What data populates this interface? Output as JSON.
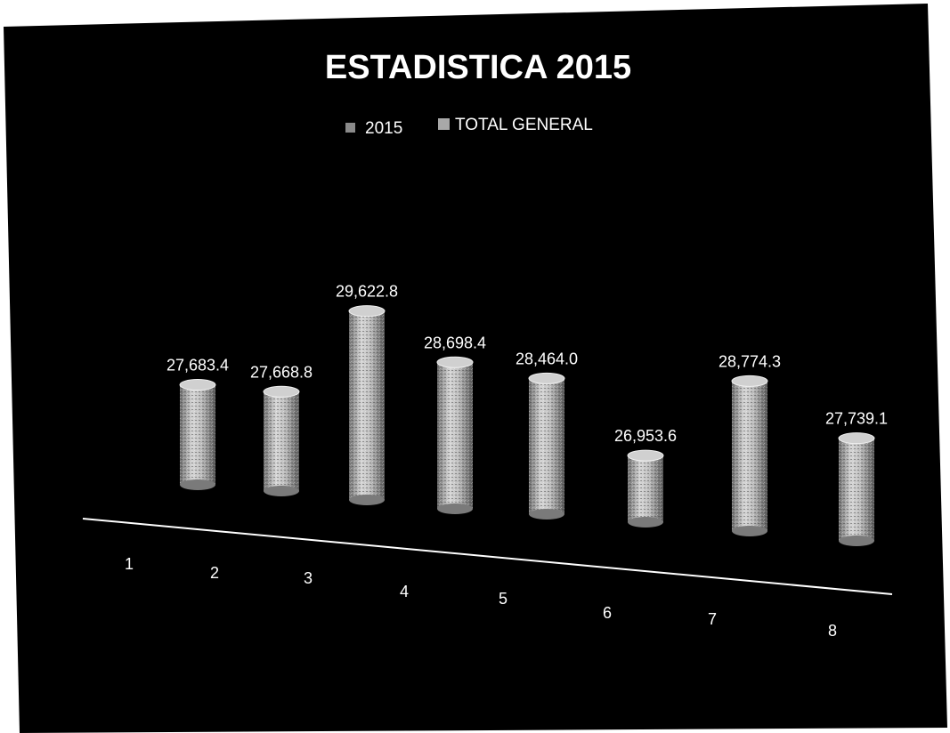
{
  "chart_data": {
    "type": "bar",
    "title": "ESTADISTICA 2015",
    "legend": {
      "position": "top",
      "entries": [
        "2015",
        "TOTAL GENERAL"
      ]
    },
    "categories": [
      "1",
      "2",
      "3",
      "4",
      "5",
      "6",
      "7",
      "8"
    ],
    "series": [
      {
        "name": "2015",
        "values": [
          null,
          null,
          null,
          null,
          null,
          null,
          null,
          null
        ]
      },
      {
        "name": "TOTAL GENERAL",
        "values": [
          27683.4,
          27668.8,
          29622.8,
          28698.4,
          28464.0,
          26953.6,
          28774.3,
          27739.1
        ]
      }
    ],
    "data_labels": [
      "27,683.4",
      "27,668.8",
      "29,622.8",
      "28,698.4",
      "28,464.0",
      "26,953.6",
      "28,774.3",
      "27,739.1"
    ],
    "grid": false,
    "xlabel": "",
    "ylabel": ""
  },
  "colors": {
    "background": "#000000",
    "bar": "#b8b8b8",
    "text": "#ffffff",
    "axis": "#ffffff"
  }
}
